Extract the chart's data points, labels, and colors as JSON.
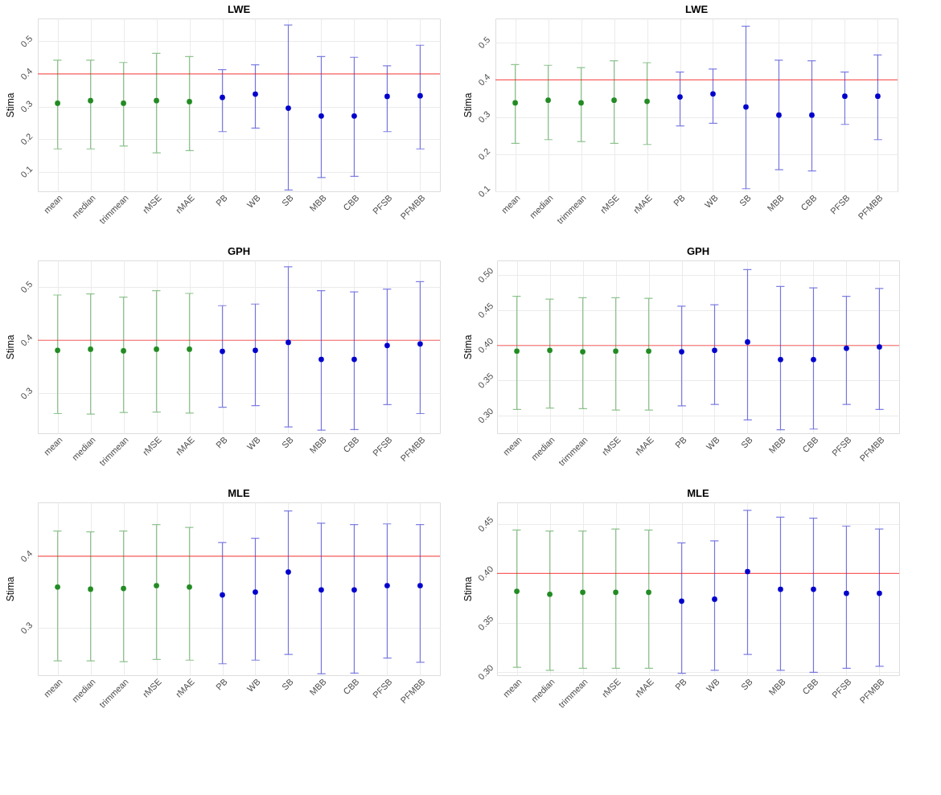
{
  "chart_data": [
    {
      "type": "scatter",
      "title": "LWE",
      "ylabel": "Stima",
      "categories": [
        "mean",
        "median",
        "trimmean",
        "rMSE",
        "rMAE",
        "PB",
        "WB",
        "SB",
        "MBB",
        "CBB",
        "PFSB",
        "PFMBB"
      ],
      "ylim": [
        0.04,
        0.57
      ],
      "yticks": [
        0.1,
        0.2,
        0.3,
        0.4,
        0.5
      ],
      "grid": true,
      "marker": "circle",
      "ref_lines": [
        {
          "axis": "y",
          "value": 0.4,
          "color": "#ff0000"
        }
      ],
      "series": [
        {
          "color": "#228b22",
          "values": [
            0.31,
            0.318,
            0.31,
            0.318,
            0.315,
            null,
            null,
            null,
            null,
            null,
            null,
            null
          ],
          "errors": [
            [
              0.17,
              0.442
            ],
            [
              0.17,
              0.442
            ],
            [
              0.179,
              0.435
            ],
            [
              0.158,
              0.463
            ],
            [
              0.165,
              0.453
            ],
            null,
            null,
            null,
            null,
            null,
            null,
            null
          ]
        },
        {
          "color": "#0000cd",
          "values": [
            null,
            null,
            null,
            null,
            null,
            0.328,
            0.338,
            0.295,
            0.271,
            0.271,
            0.331,
            0.333
          ],
          "errors": [
            null,
            null,
            null,
            null,
            null,
            [
              0.223,
              0.413
            ],
            [
              0.234,
              0.428
            ],
            [
              0.044,
              0.55
            ],
            [
              0.082,
              0.453
            ],
            [
              0.086,
              0.451
            ],
            [
              0.223,
              0.425
            ],
            [
              0.17,
              0.488
            ]
          ]
        }
      ]
    },
    {
      "type": "scatter",
      "title": "LWE",
      "ylabel": "Stima",
      "categories": [
        "mean",
        "median",
        "trimmean",
        "rMSE",
        "rMAE",
        "PB",
        "WB",
        "SB",
        "MBB",
        "CBB",
        "PFSB",
        "PFMBB"
      ],
      "ylim": [
        0.1,
        0.565
      ],
      "yticks": [
        0.1,
        0.2,
        0.3,
        0.4,
        0.5
      ],
      "grid": true,
      "marker": "circle",
      "ref_lines": [
        {
          "axis": "y",
          "value": 0.4,
          "color": "#ff0000"
        }
      ],
      "series": [
        {
          "color": "#228b22",
          "values": [
            0.338,
            0.345,
            0.338,
            0.345,
            0.342,
            null,
            null,
            null,
            null,
            null,
            null,
            null
          ],
          "errors": [
            [
              0.229,
              0.441
            ],
            [
              0.239,
              0.439
            ],
            [
              0.234,
              0.433
            ],
            [
              0.229,
              0.451
            ],
            [
              0.226,
              0.446
            ],
            null,
            null,
            null,
            null,
            null,
            null,
            null
          ]
        },
        {
          "color": "#0000cd",
          "values": [
            null,
            null,
            null,
            null,
            null,
            0.354,
            0.362,
            0.327,
            0.305,
            0.305,
            0.356,
            0.356
          ],
          "errors": [
            null,
            null,
            null,
            null,
            null,
            [
              0.276,
              0.421
            ],
            [
              0.283,
              0.429
            ],
            [
              0.107,
              0.544
            ],
            [
              0.158,
              0.453
            ],
            [
              0.155,
              0.451
            ],
            [
              0.28,
              0.421
            ],
            [
              0.239,
              0.467
            ]
          ]
        }
      ]
    },
    {
      "type": "scatter",
      "title": "GPH",
      "ylabel": "Stima",
      "categories": [
        "mean",
        "median",
        "trimmean",
        "rMSE",
        "rMAE",
        "PB",
        "WB",
        "SB",
        "MBB",
        "CBB",
        "PFSB",
        "PFMBB"
      ],
      "ylim": [
        0.225,
        0.55
      ],
      "yticks": [
        0.3,
        0.4,
        0.5
      ],
      "grid": true,
      "marker": "circle",
      "ref_lines": [
        {
          "axis": "y",
          "value": 0.4,
          "color": "#ff0000"
        }
      ],
      "series": [
        {
          "color": "#228b22",
          "values": [
            0.381,
            0.383,
            0.38,
            0.383,
            0.383,
            null,
            null,
            null,
            null,
            null,
            null,
            null
          ],
          "errors": [
            [
              0.262,
              0.485
            ],
            [
              0.261,
              0.487
            ],
            [
              0.264,
              0.481
            ],
            [
              0.265,
              0.493
            ],
            [
              0.263,
              0.488
            ],
            null,
            null,
            null,
            null,
            null,
            null,
            null
          ]
        },
        {
          "color": "#0000cd",
          "values": [
            null,
            null,
            null,
            null,
            null,
            0.379,
            0.381,
            0.396,
            0.364,
            0.364,
            0.39,
            0.393
          ],
          "errors": [
            null,
            null,
            null,
            null,
            null,
            [
              0.274,
              0.465
            ],
            [
              0.277,
              0.468
            ],
            [
              0.237,
              0.538
            ],
            [
              0.231,
              0.493
            ],
            [
              0.232,
              0.491
            ],
            [
              0.279,
              0.496
            ],
            [
              0.262,
              0.51
            ]
          ]
        }
      ]
    },
    {
      "type": "scatter",
      "title": "GPH",
      "ylabel": "Stima",
      "categories": [
        "mean",
        "median",
        "trimmean",
        "rMSE",
        "rMAE",
        "PB",
        "WB",
        "SB",
        "MBB",
        "CBB",
        "PFSB",
        "PFMBB"
      ],
      "ylim": [
        0.275,
        0.521
      ],
      "yticks": [
        {
          "value": 0.3,
          "label": "0.30"
        },
        {
          "value": 0.35,
          "label": "0.35"
        },
        {
          "value": 0.4,
          "label": "0.40"
        },
        {
          "value": 0.45,
          "label": "0.45"
        },
        {
          "value": 0.5,
          "label": "0.50"
        }
      ],
      "grid": true,
      "marker": "circle",
      "ref_lines": [
        {
          "axis": "y",
          "value": 0.4,
          "color": "#ff0000"
        }
      ],
      "series": [
        {
          "color": "#228b22",
          "values": [
            0.392,
            0.393,
            0.391,
            0.392,
            0.392,
            null,
            null,
            null,
            null,
            null,
            null,
            null
          ],
          "errors": [
            [
              0.309,
              0.47
            ],
            [
              0.311,
              0.466
            ],
            [
              0.31,
              0.468
            ],
            [
              0.308,
              0.468
            ],
            [
              0.308,
              0.467
            ],
            null,
            null,
            null,
            null,
            null,
            null,
            null
          ]
        },
        {
          "color": "#0000cd",
          "values": [
            null,
            null,
            null,
            null,
            null,
            0.391,
            0.393,
            0.405,
            0.38,
            0.38,
            0.396,
            0.398
          ],
          "errors": [
            null,
            null,
            null,
            null,
            null,
            [
              0.314,
              0.456
            ],
            [
              0.316,
              0.458
            ],
            [
              0.294,
              0.508
            ],
            [
              0.28,
              0.484
            ],
            [
              0.281,
              0.482
            ],
            [
              0.316,
              0.47
            ],
            [
              0.309,
              0.481
            ]
          ]
        }
      ]
    },
    {
      "type": "scatter",
      "title": "MLE",
      "ylabel": "Stima",
      "categories": [
        "mean",
        "median",
        "trimmean",
        "rMSE",
        "rMAE",
        "PB",
        "WB",
        "SB",
        "MBB",
        "CBB",
        "PFSB",
        "PFMBB"
      ],
      "ylim": [
        0.234,
        0.475
      ],
      "yticks": [
        0.3,
        0.4
      ],
      "grid": true,
      "marker": "circle",
      "ref_lines": [
        {
          "axis": "y",
          "value": 0.4,
          "color": "#ff0000"
        }
      ],
      "series": [
        {
          "color": "#228b22",
          "values": [
            0.357,
            0.354,
            0.355,
            0.359,
            0.357,
            null,
            null,
            null,
            null,
            null,
            null,
            null
          ],
          "errors": [
            [
              0.254,
              0.435
            ],
            [
              0.254,
              0.434
            ],
            [
              0.253,
              0.435
            ],
            [
              0.256,
              0.444
            ],
            [
              0.255,
              0.44
            ],
            null,
            null,
            null,
            null,
            null,
            null,
            null
          ]
        },
        {
          "color": "#0000cd",
          "values": [
            null,
            null,
            null,
            null,
            null,
            0.346,
            0.35,
            0.378,
            0.353,
            0.353,
            0.359,
            0.359
          ],
          "errors": [
            null,
            null,
            null,
            null,
            null,
            [
              0.25,
              0.419
            ],
            [
              0.255,
              0.425
            ],
            [
              0.263,
              0.463
            ],
            [
              0.236,
              0.446
            ],
            [
              0.237,
              0.444
            ],
            [
              0.258,
              0.445
            ],
            [
              0.252,
              0.444
            ]
          ]
        }
      ]
    },
    {
      "type": "scatter",
      "title": "MLE",
      "ylabel": "Stima",
      "categories": [
        "mean",
        "median",
        "trimmean",
        "rMSE",
        "rMAE",
        "PB",
        "WB",
        "SB",
        "MBB",
        "CBB",
        "PFSB",
        "PFMBB"
      ],
      "ylim": [
        0.297,
        0.472
      ],
      "yticks": [
        {
          "value": 0.3,
          "label": "0.30"
        },
        {
          "value": 0.35,
          "label": "0.35"
        },
        {
          "value": 0.4,
          "label": "0.40"
        },
        {
          "value": 0.45,
          "label": "0.45"
        }
      ],
      "grid": true,
      "marker": "circle",
      "ref_lines": [
        {
          "axis": "y",
          "value": 0.4,
          "color": "#ff0000"
        }
      ],
      "series": [
        {
          "color": "#228b22",
          "values": [
            0.382,
            0.379,
            0.381,
            0.381,
            0.381,
            null,
            null,
            null,
            null,
            null,
            null,
            null
          ],
          "errors": [
            [
              0.305,
              0.444
            ],
            [
              0.302,
              0.443
            ],
            [
              0.304,
              0.443
            ],
            [
              0.304,
              0.445
            ],
            [
              0.304,
              0.444
            ],
            null,
            null,
            null,
            null,
            null,
            null,
            null
          ]
        },
        {
          "color": "#0000cd",
          "values": [
            null,
            null,
            null,
            null,
            null,
            0.372,
            0.374,
            0.402,
            0.384,
            0.384,
            0.38,
            0.38
          ],
          "errors": [
            null,
            null,
            null,
            null,
            null,
            [
              0.299,
              0.431
            ],
            [
              0.302,
              0.433
            ],
            [
              0.318,
              0.464
            ],
            [
              0.302,
              0.457
            ],
            [
              0.3,
              0.456
            ],
            [
              0.304,
              0.448
            ],
            [
              0.306,
              0.445
            ]
          ]
        }
      ]
    }
  ]
}
